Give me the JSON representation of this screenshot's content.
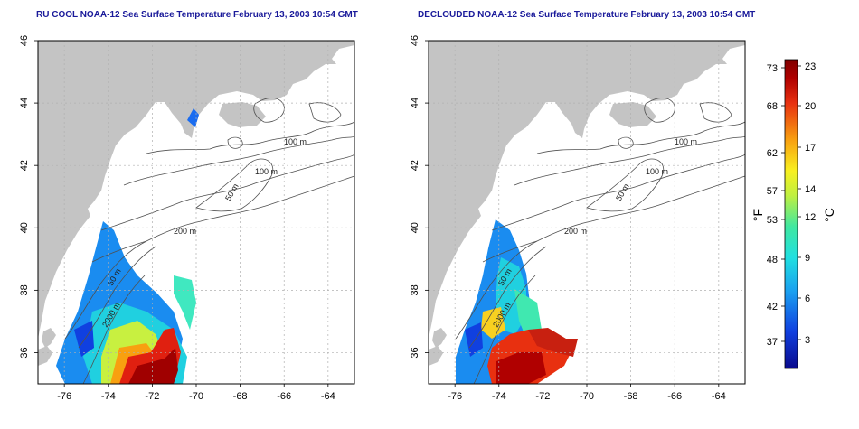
{
  "panels": [
    {
      "title": "RU COOL NOAA-12 Sea Surface Temperature February 13, 2003 10:54 GMT",
      "contour_labels": [
        "100 m",
        "100 m",
        "50 m",
        "200 m",
        "50 m",
        "2000 m"
      ]
    },
    {
      "title": "DECLOUDED NOAA-12 Sea Surface Temperature February 13, 2003 10:54 GMT",
      "contour_labels": [
        "100 m",
        "100 m",
        "50 m",
        "200 m",
        "50 m",
        "2000 m"
      ]
    }
  ],
  "axes": {
    "lon_ticks": [
      "-76",
      "-74",
      "-72",
      "-70",
      "-68",
      "-66",
      "-64"
    ],
    "lat_ticks": [
      "36",
      "38",
      "40",
      "42",
      "44",
      "46"
    ],
    "lon_range": [
      -77.2,
      -62.8
    ],
    "lat_range": [
      35,
      46
    ]
  },
  "colorbar": {
    "f_label": "°F",
    "c_label": "°C",
    "f_ticks": [
      "37",
      "42",
      "48",
      "53",
      "57",
      "62",
      "68",
      "73"
    ],
    "c_ticks": [
      "3",
      "6",
      "9",
      "12",
      "14",
      "17",
      "20",
      "23"
    ],
    "colors": [
      "#0a0a8c",
      "#1040e0",
      "#1aa0f0",
      "#20e0e0",
      "#40e8a0",
      "#c0f040",
      "#f8f020",
      "#f8a010",
      "#e83010",
      "#b00000",
      "#800000"
    ]
  },
  "colors": {
    "land": "#c4c4c4",
    "ocean": "#ffffff",
    "grid": "#b0b0b0",
    "contour": "#505050",
    "title": "#1a1a9a"
  }
}
